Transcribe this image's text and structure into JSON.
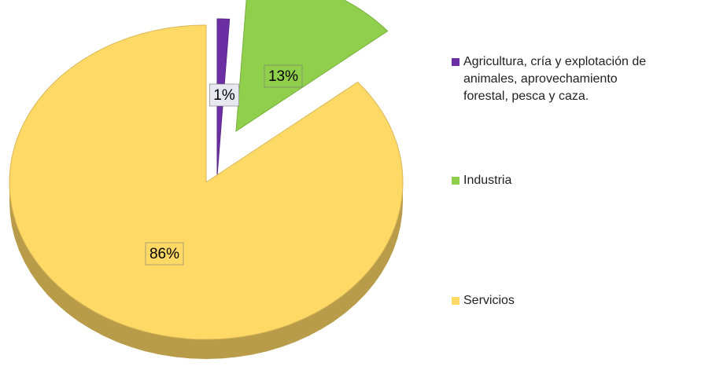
{
  "chart_data": {
    "type": "pie",
    "categories": [
      "Agricultura, cría y explotación de animales, aprovechamiento forestal, pesca y caza.",
      "Industria",
      "Servicios"
    ],
    "values": [
      1,
      13,
      86
    ],
    "value_labels": [
      "1%",
      "13%",
      "86%"
    ],
    "colors": [
      "#6b2fa3",
      "#8fcf4c",
      "#ffd966"
    ],
    "legend": "right"
  }
}
